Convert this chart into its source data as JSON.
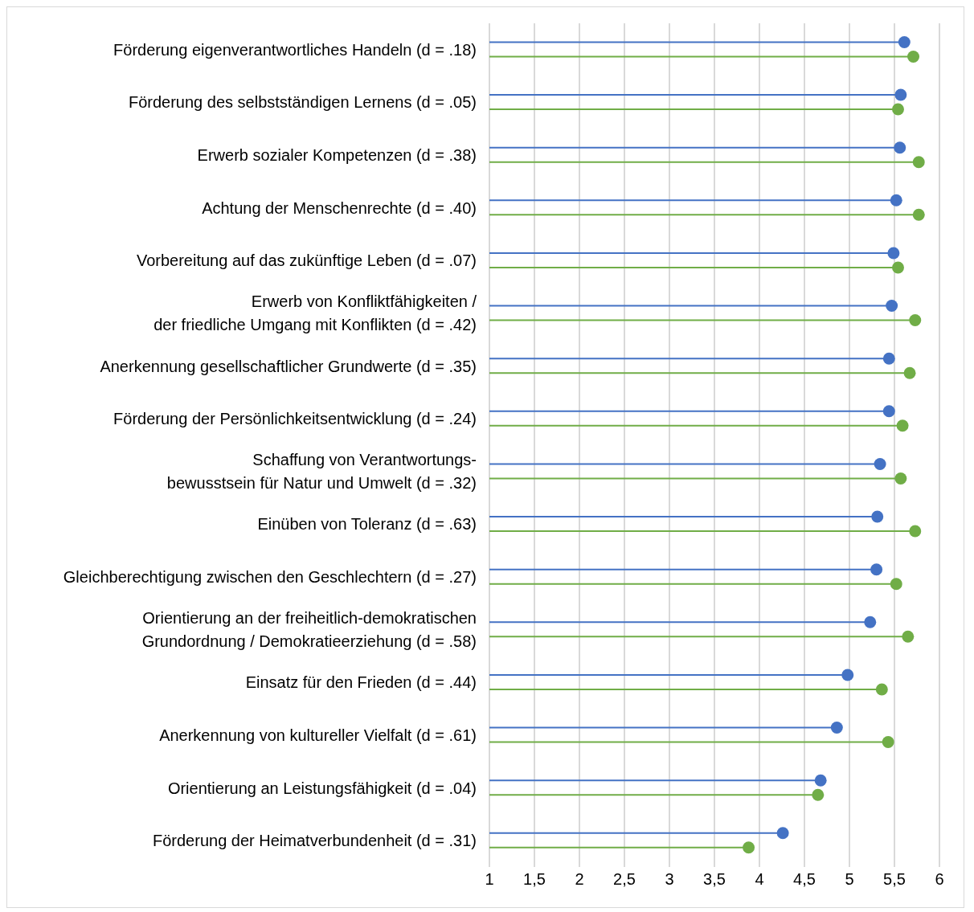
{
  "chart_data": {
    "type": "lollipop",
    "orientation": "horizontal",
    "categories": [
      "Förderung eigenverantwortliches Handeln (d = .18)",
      "Förderung des selbstständigen Lernens (d = .05)",
      "Erwerb sozialer Kompetenzen (d = .38)",
      "Achtung der Menschenrechte (d = .40)",
      "Vorbereitung auf das zukünftige Leben (d = .07)",
      "Erwerb von Konfliktfähigkeiten /\nder friedliche Umgang mit Konflikten (d = .42)",
      "Anerkennung gesellschaftlicher Grundwerte (d = .35)",
      "Förderung der Persönlichkeitsentwicklung (d = .24)",
      "Schaffung von Verantwortungs-\nbewusstsein für Natur und Umwelt (d = .32)",
      "Einüben von Toleranz (d = .63)",
      "Gleichberechtigung zwischen den Geschlechtern (d = .27)",
      "Orientierung an der freiheitlich-demokratischen\nGrundordnung / Demokratieerziehung (d = .58)",
      "Einsatz für den Frieden (d = .44)",
      "Anerkennung von kultureller Vielfalt (d = .61)",
      "Orientierung an Leistungsfähigkeit (d = .04)",
      "Förderung der Heimatverbundenheit (d = .31)"
    ],
    "series": [
      {
        "color": "#4472c4",
        "values": [
          5.61,
          5.57,
          5.56,
          5.52,
          5.49,
          5.47,
          5.44,
          5.44,
          5.34,
          5.31,
          5.3,
          5.23,
          4.98,
          4.86,
          4.68,
          4.26
        ]
      },
      {
        "color": "#70ad47",
        "values": [
          5.71,
          5.54,
          5.77,
          5.77,
          5.54,
          5.73,
          5.67,
          5.59,
          5.57,
          5.73,
          5.52,
          5.65,
          5.36,
          5.43,
          4.65,
          3.88
        ]
      }
    ],
    "xlim": [
      1,
      6
    ],
    "xticks": [
      1,
      {
        "value": 1.5,
        "label": "1,5"
      },
      2,
      {
        "value": 2.5,
        "label": "2,5"
      },
      3,
      {
        "value": 3.5,
        "label": "3,5"
      },
      4,
      {
        "value": 4.5,
        "label": "4,5"
      },
      5,
      {
        "value": 5.5,
        "label": "5,5"
      },
      6
    ],
    "grid": "x",
    "marker": "circle",
    "legend": false
  }
}
